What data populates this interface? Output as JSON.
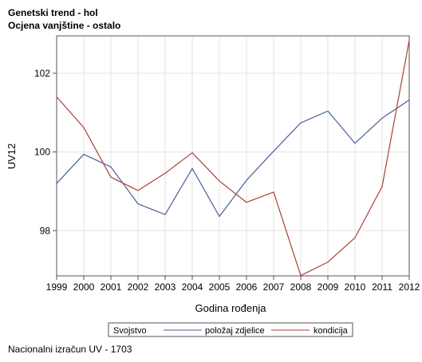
{
  "header": {
    "title": "Genetski trend - hol",
    "subtitle": "Ocjena vanjštine - ostalo"
  },
  "footnote": "Nacionalni izračun UV - 1703",
  "chart_data": {
    "type": "line",
    "title": "Genetski trend - hol",
    "subtitle": "Ocjena vanjštine - ostalo",
    "xlabel": "Godina rođenja",
    "ylabel": "UV12",
    "x": [
      1999,
      2000,
      2001,
      2002,
      2003,
      2004,
      2005,
      2006,
      2007,
      2008,
      2009,
      2010,
      2011,
      2012
    ],
    "x_ticks": [
      "1999",
      "2000",
      "2001",
      "2002",
      "2003",
      "2004",
      "2005",
      "2006",
      "2007",
      "2008",
      "2009",
      "2010",
      "2011",
      "2012"
    ],
    "y_ticks": [
      98,
      100,
      102
    ],
    "xlim": [
      1999,
      2012
    ],
    "ylim": [
      96.85,
      102.95
    ],
    "grid": true,
    "legend": {
      "title": "Svojstvo",
      "placement": "bottom"
    },
    "series": [
      {
        "name": "položaj zdjelice",
        "color": "#4a5f9a",
        "values": [
          99.2,
          99.94,
          99.62,
          98.68,
          98.41,
          99.58,
          98.36,
          99.28,
          100.02,
          100.74,
          101.04,
          100.22,
          100.86,
          101.32
        ]
      },
      {
        "name": "kondicija",
        "color": "#a94136",
        "values": [
          101.4,
          100.62,
          99.36,
          99.02,
          99.46,
          99.98,
          99.26,
          98.72,
          98.98,
          96.86,
          97.2,
          97.82,
          99.12,
          102.84
        ]
      }
    ]
  }
}
